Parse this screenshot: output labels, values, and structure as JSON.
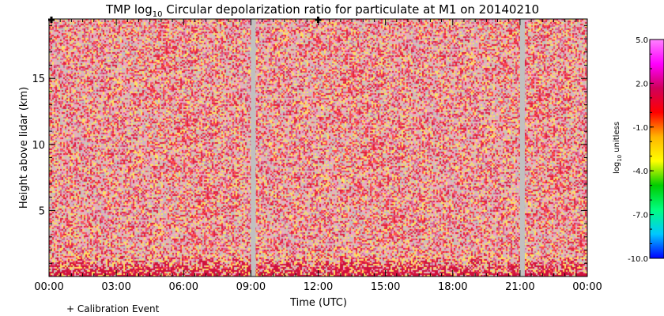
{
  "chart_data": {
    "type": "heatmap",
    "title": {
      "prefix": "TMP log",
      "subscript": "10",
      "suffix": " Circular depolarization ratio for particulate at M1 on 20140210"
    },
    "xlabel": "Time (UTC)",
    "ylabel": "Height above lidar (km)",
    "x_ticks": [
      "00:00",
      "03:00",
      "06:00",
      "09:00",
      "12:00",
      "15:00",
      "18:00",
      "21:00",
      "00:00"
    ],
    "x_tick_hours": [
      0,
      3,
      6,
      9,
      12,
      15,
      18,
      21,
      24
    ],
    "xlim_hours": [
      0,
      24
    ],
    "y_ticks": [
      "5",
      "10",
      "15"
    ],
    "y_tick_values": [
      5,
      10,
      15
    ],
    "ylim_km": [
      0,
      19.5
    ],
    "colorbar": {
      "label_prefix": "log",
      "label_subscript": "10",
      "label_suffix": " unitless",
      "ticks": [
        "5.0",
        "2.0",
        "-1.0",
        "-4.0",
        "-7.0",
        "-10.0"
      ],
      "tick_values": [
        5,
        2,
        -1,
        -4,
        -7,
        -10
      ],
      "range": [
        -10,
        5
      ],
      "colors": [
        "#0000ff",
        "#00c8ff",
        "#00ff80",
        "#00cc00",
        "#ffff00",
        "#ffb400",
        "#ff0000",
        "#d0005a",
        "#ff00ff",
        "#ff80ff"
      ]
    },
    "missing_data_hours": [
      [
        9.0,
        9.12
      ],
      [
        21.0,
        21.12
      ]
    ],
    "missing_color": "#c0c0c0",
    "noise_colors": [
      "#e8b4b8",
      "#d8c8a8",
      "#ff4d4d",
      "#e02040",
      "#ffe060",
      "#f0a0c8",
      "#c0c0c0",
      "#d86090"
    ],
    "low_altitude_color": "#d0103c",
    "calibration_legend": "+ Calibration Event",
    "calibration_event_hours": [
      0.0,
      12.0
    ]
  }
}
